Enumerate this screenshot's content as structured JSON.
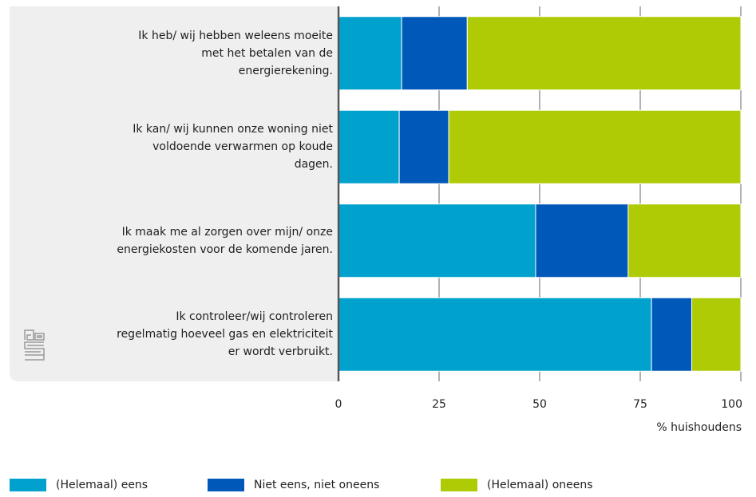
{
  "chart_data": {
    "type": "bar",
    "orientation": "horizontal",
    "stacked": true,
    "categories": [
      "Ik heb/ wij hebben weleens moeite met het betalen van de energierekening.",
      "Ik kan/ wij kunnen onze woning niet voldoende verwarmen op koude dagen.",
      "Ik maak me al zorgen over mijn/ onze energiekosten voor de komende jaren.",
      "Ik controleer/wij controleren regelmatig hoeveel gas en elektriciteit er wordt verbruikt."
    ],
    "category_lines": [
      [
        "Ik heb/ wij hebben weleens moeite",
        "met het betalen van de",
        "energierekening."
      ],
      [
        "Ik kan/ wij kunnen onze woning niet",
        "voldoende verwarmen op koude",
        "dagen."
      ],
      [
        "Ik maak me al zorgen over mijn/ onze",
        "energiekosten voor de komende jaren."
      ],
      [
        "Ik controleer/wij controleren",
        "regelmatig hoeveel gas en elektriciteit",
        "er wordt verbruikt."
      ]
    ],
    "series": [
      {
        "name": "(Helemaal) eens",
        "color": "#00a1cd",
        "values": [
          15.7,
          15.1,
          49.0,
          77.8
        ]
      },
      {
        "name": "Niet eens, niet oneens",
        "color": "#0058b8",
        "values": [
          16.3,
          12.3,
          23.0,
          10.0
        ]
      },
      {
        "name": "(Helemaal) oneens",
        "color": "#afcb05",
        "values": [
          68.0,
          72.6,
          28.0,
          12.2
        ]
      }
    ],
    "xlim": [
      0,
      100
    ],
    "xticks": [
      0,
      25,
      50,
      75,
      100
    ],
    "xlabel": "% huishoudens",
    "ylabel": "",
    "grid": true,
    "legend_position": "bottom"
  },
  "logo": {
    "icon": "cbs-logo-icon"
  }
}
